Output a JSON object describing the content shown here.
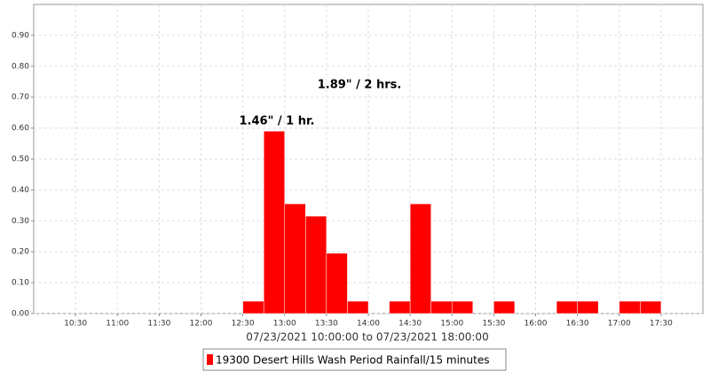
{
  "chart_data": {
    "type": "histogram",
    "xlabel": "07/23/2021 10:00:00 to 07/23/2021 18:00:00",
    "bins": [
      "12:30",
      "12:45",
      "13:00",
      "13:15",
      "13:30",
      "13:45",
      "14:00",
      "14:15",
      "14:30",
      "14:45",
      "15:00",
      "15:15",
      "15:30",
      "15:45",
      "16:00",
      "16:15",
      "16:30",
      "16:45",
      "17:00",
      "17:15",
      "17:30"
    ],
    "series": [
      {
        "name": "19300 Desert Hills Wash Period Rainfall/15 minutes",
        "color": "#ff0000",
        "values": [
          0.04,
          0.59,
          0.355,
          0.315,
          0.195,
          0.04,
          0,
          0.04,
          0.355,
          0.04,
          0.04,
          0,
          0.04,
          0,
          0,
          0.04,
          0.04,
          0,
          0.04,
          0.04
        ]
      }
    ],
    "xlim": [
      "10:00",
      "18:00"
    ],
    "xticks": [
      "10:30",
      "11:00",
      "11:30",
      "12:00",
      "12:30",
      "13:00",
      "13:30",
      "14:00",
      "14:30",
      "15:00",
      "15:30",
      "16:00",
      "16:30",
      "17:00",
      "17:30"
    ],
    "ylim": [
      0,
      1.0
    ],
    "yticks": [
      {
        "value": 0,
        "label": "0.00"
      },
      {
        "value": 0.1,
        "label": "0.10"
      },
      {
        "value": 0.2,
        "label": "0.20"
      },
      {
        "value": 0.3,
        "label": "0.30"
      },
      {
        "value": 0.4,
        "label": "0.40"
      },
      {
        "value": 0.5,
        "label": "0.50"
      },
      {
        "value": 0.6,
        "label": "0.60"
      },
      {
        "value": 0.7,
        "label": "0.70"
      },
      {
        "value": 0.8,
        "label": "0.80"
      },
      {
        "value": 0.9,
        "label": "0.90"
      }
    ],
    "annotations": [
      "1.89\" / 2 hrs.",
      "1.46\" / 1 hr."
    ],
    "grid": true,
    "legend": "bottom"
  }
}
